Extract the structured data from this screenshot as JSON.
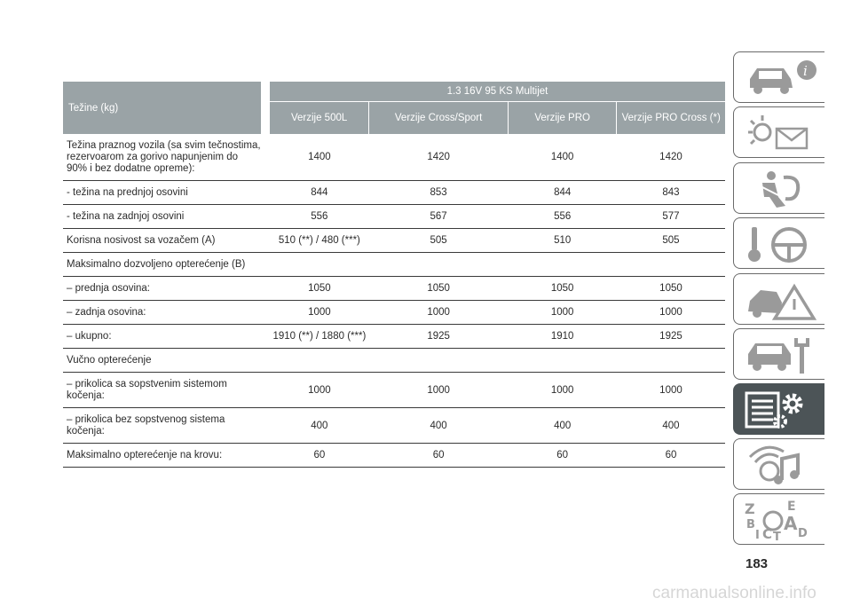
{
  "table": {
    "weights_label": "Težine (kg)",
    "engine_label": "1.3 16V 95 KS Multijet",
    "variants": [
      "Verzije 500L",
      "Verzije Cross/Sport",
      "Verzije PRO",
      "Verzije PRO Cross (*)"
    ],
    "rows": [
      {
        "label": "Težina praznog vozila (sa svim tečnostima, rezervoarom za gorivo napunjenim do 90% i bez dodatne opreme):",
        "values": [
          "1400",
          "1420",
          "1400",
          "1420"
        ]
      },
      {
        "label": "- težina na prednjoj osovini",
        "values": [
          "844",
          "853",
          "844",
          "843"
        ]
      },
      {
        "label": "- težina na zadnjoj osovini",
        "values": [
          "556",
          "567",
          "556",
          "577"
        ]
      },
      {
        "label": "Korisna nosivost sa vozačem (A)",
        "values": [
          "510 (**) / 480 (***)",
          "505",
          "510",
          "505"
        ]
      },
      {
        "label": "Maksimalno dozvoljeno opterećenje (B)",
        "values": [
          "",
          "",
          "",
          ""
        ]
      },
      {
        "label": "– prednja osovina:",
        "values": [
          "1050",
          "1050",
          "1050",
          "1050"
        ]
      },
      {
        "label": "– zadnja osovina:",
        "values": [
          "1000",
          "1000",
          "1000",
          "1000"
        ]
      },
      {
        "label": "– ukupno:",
        "values": [
          "1910 (**) / 1880 (***)",
          "1925",
          "1910",
          "1925"
        ]
      },
      {
        "label": "Vučno opterećenje",
        "values": [
          "",
          "",
          "",
          ""
        ]
      },
      {
        "label": "– prikolica sa sopstvenim sistemom kočenja:",
        "values": [
          "1000",
          "1000",
          "1000",
          "1000"
        ]
      },
      {
        "label": "– prikolica bez sopstvenog sistema kočenja:",
        "values": [
          "400",
          "400",
          "400",
          "400"
        ]
      },
      {
        "label": "Maksimalno opterećenje na krovu:",
        "values": [
          "60",
          "60",
          "60",
          "60"
        ]
      }
    ]
  },
  "side_tabs": [
    {
      "icon": "car-info-icon",
      "active": false
    },
    {
      "icon": "warning-lights-message-icon",
      "active": false
    },
    {
      "icon": "airbag-seat-icon",
      "active": false
    },
    {
      "icon": "key-steering-wheel-icon",
      "active": false
    },
    {
      "icon": "car-breakdown-triangle-icon",
      "active": false
    },
    {
      "icon": "car-maintenance-tools-icon",
      "active": false
    },
    {
      "icon": "specifications-list-gears-icon",
      "active": true
    },
    {
      "icon": "multimedia-music-icon",
      "active": false
    },
    {
      "icon": "alphabetical-index-icon",
      "active": false
    }
  ],
  "colors": {
    "header_bg": "#9aa3a6",
    "active_tab": "#4c5457"
  },
  "page_number": "183",
  "watermark": "carmanualsonline.info"
}
